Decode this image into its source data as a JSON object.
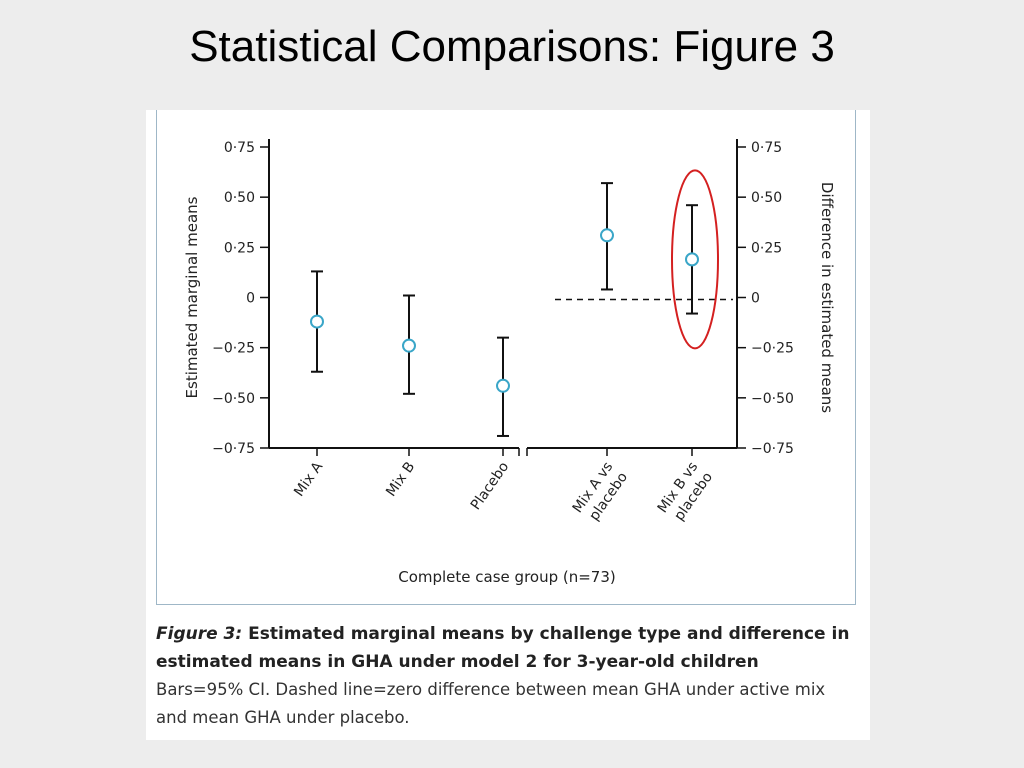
{
  "slide": {
    "title": "Statistical Comparisons: Figure 3"
  },
  "caption": {
    "figure_label": "Figure 3:",
    "heading": " Estimated marginal means by challenge type and difference in estimated means in GHA under model 2 for 3-year-old children",
    "body": "Bars=95% CI. Dashed line=zero difference between mean GHA under active mix and mean GHA under placebo."
  },
  "colors": {
    "marker": "#3aa6c8",
    "highlight": "#d42020",
    "axis": "#111111"
  },
  "chart_data": {
    "type": "scatter",
    "xlabel": "Complete case group (n=73)",
    "ylabel_left": "Estimated marginal means",
    "ylabel_right": "Difference in estimated means",
    "ylim": [
      -0.75,
      0.75
    ],
    "yticks": [
      0.75,
      0.5,
      0.25,
      0,
      -0.25,
      -0.5,
      -0.75
    ],
    "ytick_labels": [
      "0·75",
      "0·50",
      "0·25",
      "0",
      "−0·25",
      "−0·50",
      "−0·75"
    ],
    "grid": false,
    "left_panel": {
      "axis": "left",
      "categories": [
        "Mix A",
        "Mix B",
        "Placebo"
      ],
      "points": [
        {
          "label": "Mix A",
          "mean": -0.12,
          "lower": -0.37,
          "upper": 0.13
        },
        {
          "label": "Mix B",
          "mean": -0.24,
          "lower": -0.48,
          "upper": 0.01
        },
        {
          "label": "Placebo",
          "mean": -0.44,
          "lower": -0.69,
          "upper": -0.2
        }
      ]
    },
    "right_panel": {
      "axis": "right",
      "categories": [
        "Mix A vs placebo",
        "Mix B vs placebo"
      ],
      "points": [
        {
          "label": "Mix A vs placebo",
          "mean": 0.31,
          "lower": 0.04,
          "upper": 0.57
        },
        {
          "label": "Mix B vs placebo",
          "mean": 0.19,
          "lower": -0.08,
          "upper": 0.46,
          "highlighted": true
        }
      ],
      "reference_line": {
        "y": 0,
        "style": "dashed"
      }
    }
  }
}
